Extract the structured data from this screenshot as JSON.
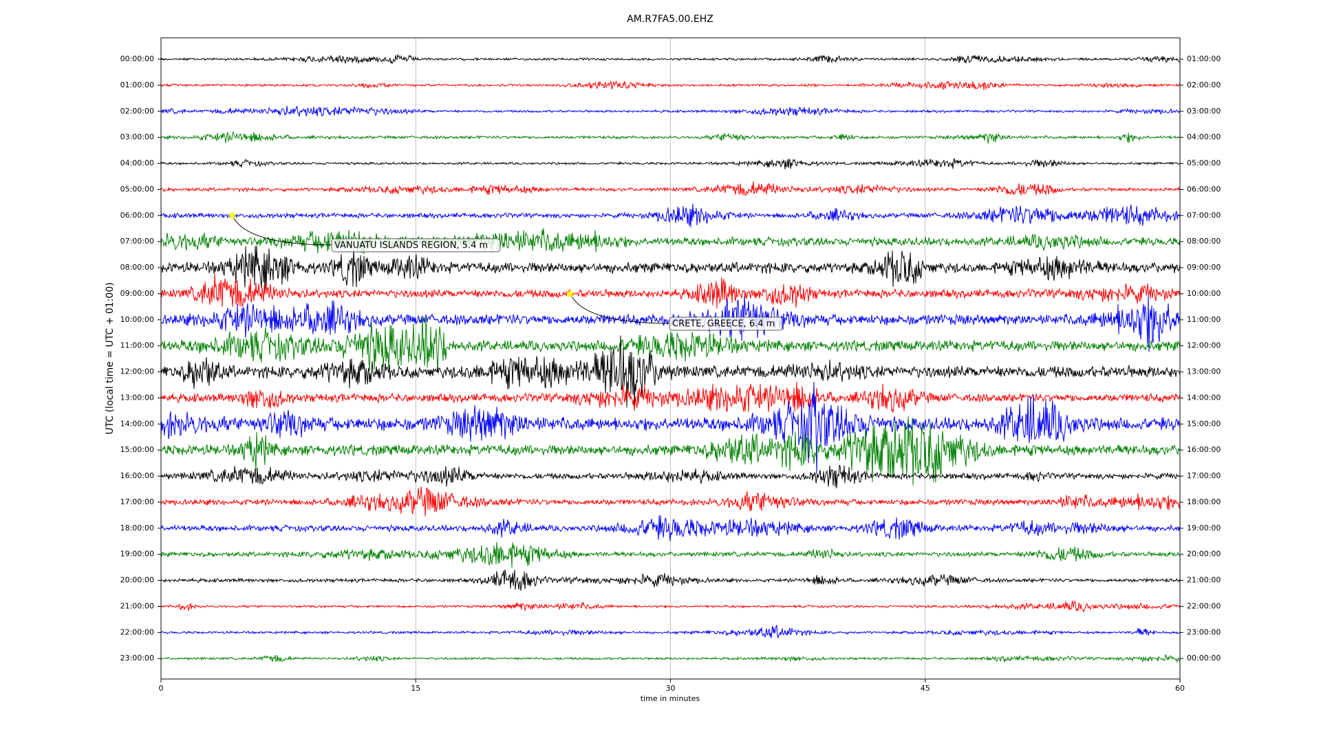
{
  "chart_data": {
    "type": "helicorder",
    "title": "AM.R7FA5.00.EHZ",
    "xlabel": "time in minutes",
    "ylabel": "UTC (local time = UTC + 01:00)",
    "xlim": [
      0,
      60
    ],
    "xticks": [
      0,
      15,
      30,
      45,
      60
    ],
    "grid": true,
    "colors": [
      "#000000",
      "#ff0000",
      "#0000ff",
      "#008000"
    ],
    "categories": [
      "00:00:00",
      "01:00:00",
      "02:00:00",
      "03:00:00",
      "04:00:00",
      "05:00:00",
      "06:00:00",
      "07:00:00",
      "08:00:00",
      "09:00:00",
      "10:00:00",
      "11:00:00",
      "12:00:00",
      "13:00:00",
      "14:00:00",
      "15:00:00",
      "16:00:00",
      "17:00:00",
      "18:00:00",
      "19:00:00",
      "20:00:00",
      "21:00:00",
      "22:00:00",
      "23:00:00"
    ],
    "right_categories": [
      "01:00:00",
      "02:00:00",
      "03:00:00",
      "04:00:00",
      "05:00:00",
      "06:00:00",
      "07:00:00",
      "08:00:00",
      "09:00:00",
      "10:00:00",
      "11:00:00",
      "12:00:00",
      "13:00:00",
      "14:00:00",
      "15:00:00",
      "16:00:00",
      "17:00:00",
      "18:00:00",
      "19:00:00",
      "20:00:00",
      "21:00:00",
      "22:00:00",
      "23:00:00",
      "00:00:00"
    ],
    "events": [
      {
        "label": "VANUATU ISLANDS REGION, 5.4 m",
        "row": 6,
        "minute": 4.2
      },
      {
        "label": "CRETE, GREECE, 6.4 m",
        "row": 9,
        "minute": 24.1
      }
    ]
  }
}
